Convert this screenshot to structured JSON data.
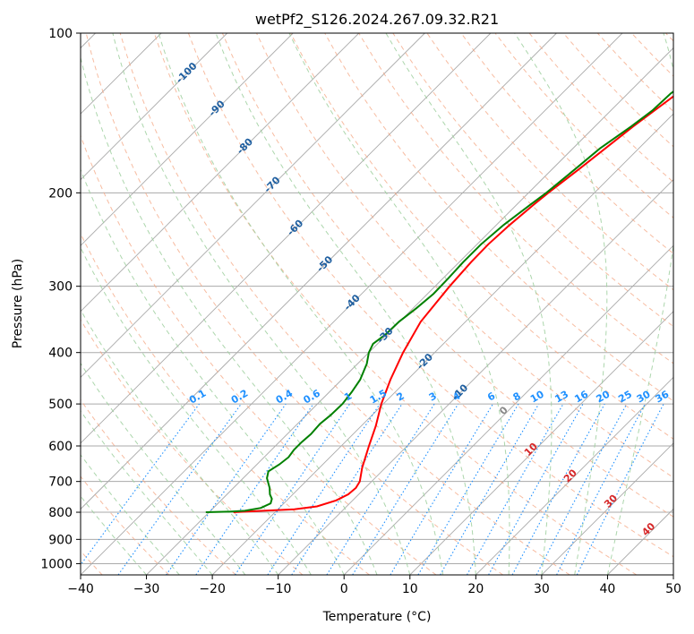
{
  "chart_data": {
    "type": "line",
    "subtype": "skew-t log-p diagram",
    "title": "wetPf2_S126.2024.267.09.32.R21",
    "xlabel": "Temperature (°C)",
    "ylabel": "Pressure (hPa)",
    "xlim": [
      -40,
      50
    ],
    "ylim": [
      1050,
      100
    ],
    "y_scale": "log",
    "x_ticks": [
      -40,
      -30,
      -20,
      -10,
      0,
      10,
      20,
      30,
      40,
      50
    ],
    "y_ticks": [
      1000,
      900,
      800,
      700,
      600,
      500,
      400,
      300,
      200,
      100
    ],
    "grid": true,
    "colors": {
      "temperature": "#ff0000",
      "dewpoint": "#008000",
      "isotherm": "#aaaaaa",
      "dry_adiabat": "#f4a582",
      "moist_adiabat": "#9ecf9e",
      "mixing_ratio": "#1e90ff",
      "isotherm_label": "#1f5fa0",
      "mixing_label": "#1e90ff",
      "special_label": "#d62728"
    },
    "series": [
      {
        "name": "Temperature",
        "points": [
          [
            800,
            -26.3
          ],
          [
            795,
            -22
          ],
          [
            790,
            -17.5
          ],
          [
            780,
            -14.5
          ],
          [
            760,
            -12.5
          ],
          [
            740,
            -11.6
          ],
          [
            720,
            -11.4
          ],
          [
            700,
            -11.8
          ],
          [
            660,
            -13.5
          ],
          [
            600,
            -15.8
          ],
          [
            550,
            -17.8
          ],
          [
            500,
            -20.3
          ],
          [
            450,
            -22.6
          ],
          [
            400,
            -24.8
          ],
          [
            350,
            -26.8
          ],
          [
            300,
            -27.8
          ],
          [
            270,
            -28.2
          ],
          [
            250,
            -28.3
          ],
          [
            230,
            -28.0
          ],
          [
            210,
            -27.4
          ],
          [
            200,
            -27.0
          ],
          [
            180,
            -25.9
          ],
          [
            150,
            -24.2
          ],
          [
            130,
            -22.5
          ],
          [
            110,
            -20.7
          ],
          [
            100,
            -20.3
          ]
        ]
      },
      {
        "name": "Dewpoint",
        "points": [
          [
            800,
            -30.5
          ],
          [
            798,
            -27
          ],
          [
            795,
            -24.8
          ],
          [
            785,
            -22.8
          ],
          [
            770,
            -22
          ],
          [
            755,
            -22.5
          ],
          [
            740,
            -23.5
          ],
          [
            720,
            -24.5
          ],
          [
            690,
            -26.4
          ],
          [
            670,
            -27.2
          ],
          [
            650,
            -26.6
          ],
          [
            630,
            -26.3
          ],
          [
            610,
            -26.6
          ],
          [
            590,
            -26.6
          ],
          [
            570,
            -26.4
          ],
          [
            545,
            -26.6
          ],
          [
            525,
            -26.3
          ],
          [
            500,
            -26.2
          ],
          [
            475,
            -26.6
          ],
          [
            450,
            -27.2
          ],
          [
            420,
            -28.6
          ],
          [
            400,
            -30
          ],
          [
            385,
            -30.7
          ],
          [
            370,
            -30.2
          ],
          [
            350,
            -30.1
          ],
          [
            330,
            -29.5
          ],
          [
            310,
            -29.1
          ],
          [
            290,
            -29.2
          ],
          [
            270,
            -29.4
          ],
          [
            250,
            -29.4
          ],
          [
            230,
            -28.9
          ],
          [
            210,
            -27.9
          ],
          [
            200,
            -27.3
          ],
          [
            180,
            -26.5
          ],
          [
            165,
            -25.9
          ],
          [
            150,
            -24.5
          ],
          [
            140,
            -23.7
          ],
          [
            130,
            -23.5
          ],
          [
            120,
            -22.5
          ],
          [
            110,
            -22.2
          ],
          [
            100,
            -21.7
          ]
        ]
      }
    ],
    "isotherm_labels": [
      "-100",
      "-90",
      "-80",
      "-70",
      "-60",
      "-50",
      "-40",
      "-30",
      "-20",
      "-10"
    ],
    "mixing_ratio_labels": [
      "0.1",
      "0.2",
      "0.4",
      "0.6",
      "1",
      "1.5",
      "2",
      "3",
      "4",
      "6",
      "8",
      "10",
      "13",
      "16",
      "20",
      "25",
      "30",
      "36"
    ],
    "special_labels": [
      "0",
      "10",
      "20",
      "30",
      "40"
    ]
  }
}
